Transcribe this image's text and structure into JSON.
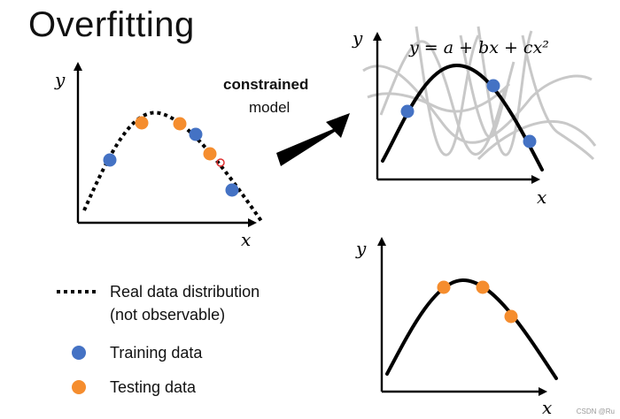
{
  "title": "Overfitting",
  "arrow_label": {
    "bold": "constrained",
    "normal": "model"
  },
  "equation": "y = a + bx + cx²",
  "axis_labels": {
    "x": "x",
    "y": "y"
  },
  "legend": [
    {
      "label": "Real data distribution",
      "sublabel": "(not observable)",
      "marker": "dotted-line"
    },
    {
      "label": "Training data",
      "marker": "blue-dot",
      "color": "#4472c4"
    },
    {
      "label": "Testing data",
      "marker": "orange-dot",
      "color": "#f58d2e"
    }
  ],
  "colors": {
    "training": "#4472c4",
    "testing": "#f58d2e",
    "candidate_curves": "#c8c8c8"
  },
  "watermark": "CSDN @Ru"
}
